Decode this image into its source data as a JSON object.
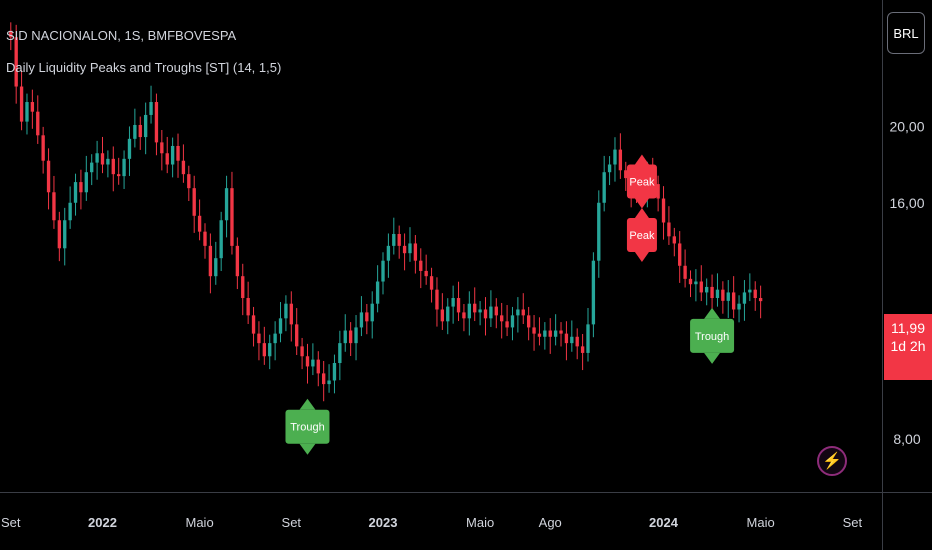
{
  "header": {
    "symbol": "SID NACIONALON, 1S, BMFBOVESPA",
    "indicator": "Daily Liquidity Peaks and Troughs [ST] (14, 1,5)"
  },
  "currency_button": {
    "label": "BRL"
  },
  "last_price": {
    "value": "11,99",
    "countdown": "1d 2h"
  },
  "colors": {
    "up": "#26a69a",
    "down": "#f23645",
    "trough": "#4caf50",
    "peak": "#f23645",
    "badge": "#f23645"
  },
  "icons": {
    "replay": "lightning-icon"
  },
  "chart_data": {
    "type": "candlestick",
    "price_axis": {
      "tick_labels": [
        "20,00",
        "16,00",
        "8,00"
      ],
      "ticks": [
        20,
        16,
        8
      ],
      "log_scale": true,
      "range": [
        6.85,
        29
      ]
    },
    "time_axis": {
      "tick_labels": [
        "Set",
        "2022",
        "Maio",
        "Set",
        "2023",
        "Maio",
        "Ago",
        "2024",
        "Maio",
        "Set"
      ],
      "ticks": [
        0,
        17,
        35,
        52,
        69,
        87,
        100,
        121,
        139,
        156
      ],
      "bold": [
        false,
        true,
        false,
        false,
        true,
        false,
        false,
        true,
        false,
        false
      ],
      "range": [
        -2,
        161.5
      ]
    },
    "close_start": 26.5,
    "closes": [
      26,
      22.5,
      20.3,
      21.5,
      20.9,
      19.5,
      18.1,
      16.5,
      15.2,
      14,
      15.2,
      16,
      17,
      16.5,
      17.5,
      18,
      18.5,
      17.9,
      18.2,
      17.4,
      17.3,
      18.2,
      19.3,
      20.1,
      19.4,
      20.7,
      21.5,
      19.1,
      18.5,
      17.9,
      18.9,
      18.1,
      17.4,
      16.7,
      15.4,
      14.7,
      14.1,
      12.9,
      13.6,
      15.2,
      16.7,
      14.1,
      12.9,
      12.1,
      11.5,
      10.9,
      10.6,
      10.2,
      10.6,
      10.9,
      11.4,
      11.9,
      11.2,
      10.5,
      10.2,
      9.9,
      10.1,
      9.7,
      9.4,
      9.5,
      10,
      10.6,
      11,
      10.6,
      11.1,
      11.6,
      11.3,
      11.9,
      12.7,
      13.5,
      14.1,
      14.6,
      14.1,
      13.8,
      14.2,
      13.5,
      13.1,
      12.9,
      12.4,
      11.7,
      11.3,
      11.8,
      12.1,
      11.6,
      11.4,
      11.9,
      11.6,
      11.7,
      11.4,
      11.8,
      11.5,
      11.3,
      11.1,
      11.5,
      11.7,
      11.5,
      11.1,
      10.9,
      10.8,
      11,
      10.8,
      11,
      10.9,
      10.6,
      10.8,
      10.5,
      10.3,
      11.2,
      13.5,
      16,
      17.5,
      17.9,
      18.7,
      17.6,
      17.2,
      16.6,
      16.4,
      16.6,
      17.4,
      16.9,
      16.2,
      15.1,
      14.5,
      14.2,
      13.3,
      12.8,
      12.6,
      12.7,
      12.3,
      12.5,
      12.1,
      12.4,
      12,
      12.3,
      11.7,
      11.9,
      12.3,
      12.4,
      12.1,
      11.99
    ],
    "annotations": [
      {
        "label": "Trough",
        "type": "trough",
        "x": 55,
        "price": 8.72
      },
      {
        "label": "Peak",
        "type": "peak",
        "x": 117,
        "price": 17.9
      },
      {
        "label": "Peak",
        "type": "peak",
        "x": 117,
        "price": 15.3
      },
      {
        "label": "Trough",
        "type": "trough",
        "x": 130,
        "price": 11.38
      }
    ],
    "grid": false,
    "legend": "none"
  }
}
